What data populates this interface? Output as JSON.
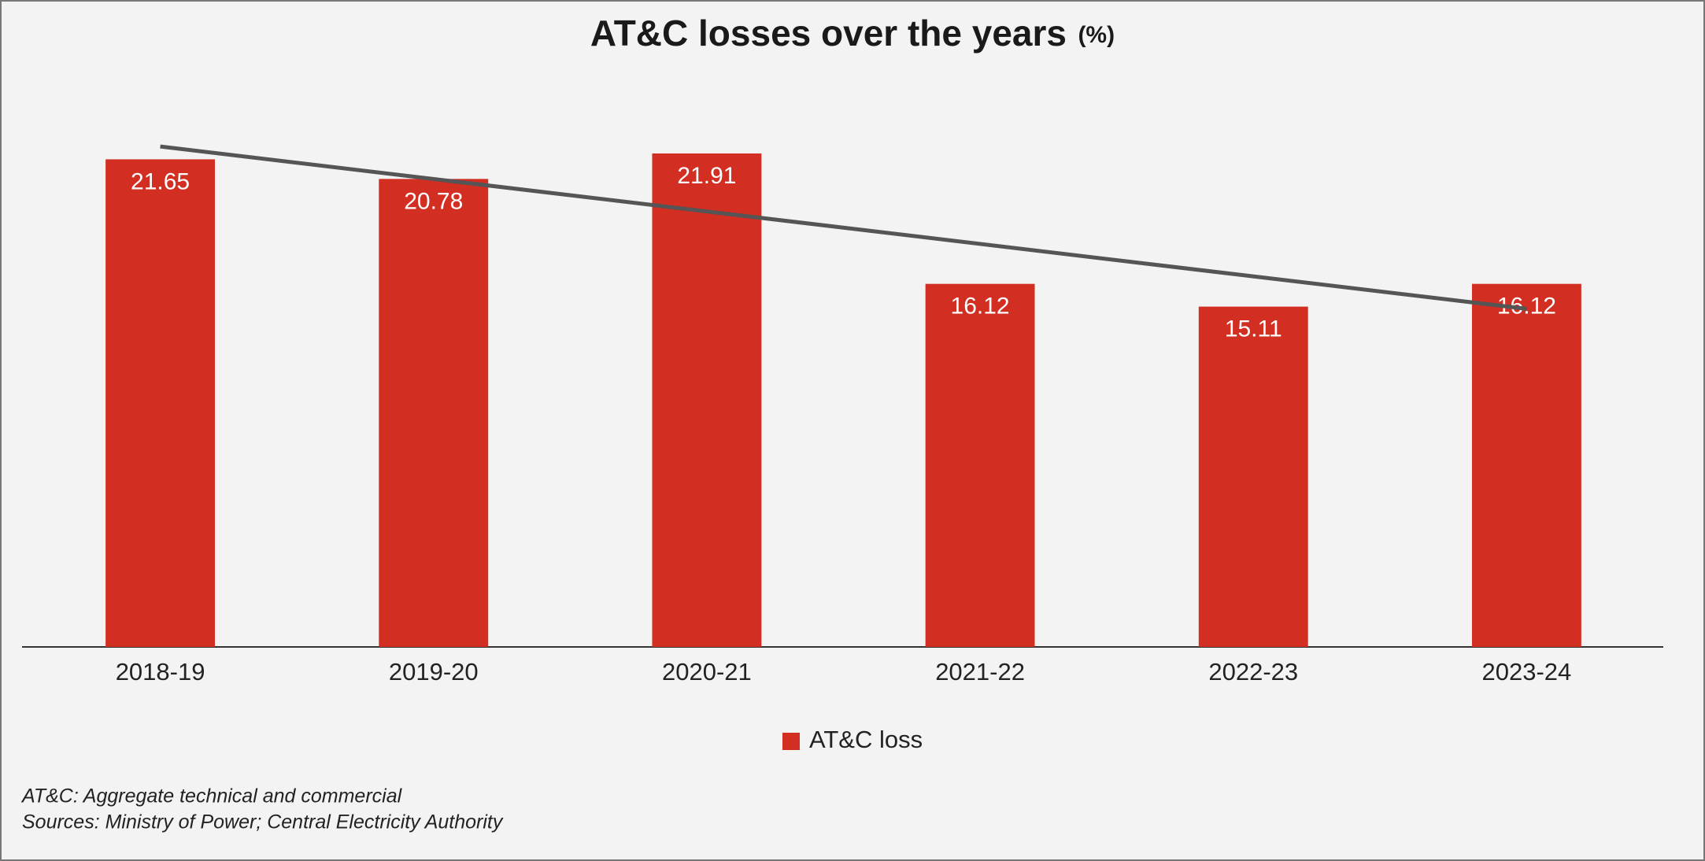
{
  "chart_data": {
    "type": "bar",
    "title": "AT&C losses over the years",
    "subtitle": "(%)",
    "categories": [
      "2018-19",
      "2019-20",
      "2020-21",
      "2021-22",
      "2022-23",
      "2023-24"
    ],
    "series": [
      {
        "name": "AT&C loss",
        "color": "#d22e22",
        "values": [
          21.65,
          20.78,
          21.91,
          16.12,
          15.11,
          16.12
        ]
      }
    ],
    "trendline": true,
    "trendline_color": "#555555",
    "legend": "bottom",
    "notes": [
      "AT&C: Aggregate technical and commercial",
      "Sources: Ministry of Power; Central Electricity Authority"
    ]
  }
}
